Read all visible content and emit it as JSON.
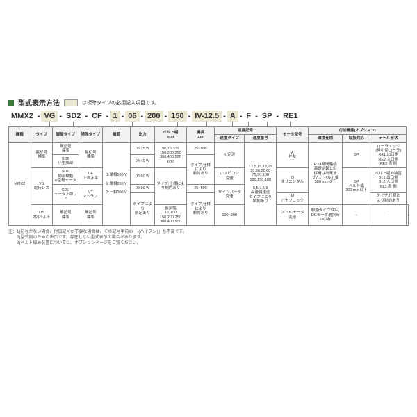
{
  "title": "型式表示方法",
  "legendNote": "は標準タイプの必須記入項目です。",
  "model": {
    "segments": [
      {
        "text": "MMX2",
        "green": false
      },
      {
        "text": "VG",
        "green": true
      },
      {
        "text": "SD2",
        "green": false
      },
      {
        "text": "CF",
        "green": false
      },
      {
        "text": "1",
        "green": true
      },
      {
        "text": "06",
        "green": true
      },
      {
        "text": "200",
        "green": true
      },
      {
        "text": "150",
        "green": true
      },
      {
        "text": "IV-12.5",
        "green": true
      },
      {
        "text": "A",
        "green": true
      },
      {
        "text": "F",
        "green": false
      },
      {
        "text": "SP",
        "green": false
      },
      {
        "text": "RE1",
        "green": false
      }
    ]
  },
  "headers": {
    "row1": [
      "機種",
      "タイプ",
      "脚部タイプ",
      "特殊タイプ",
      "電源",
      "出力",
      "ベルト幅\nmm",
      "機長\ncm",
      "速度記号",
      "",
      "モータ記号",
      "付加機能(オプション)",
      "",
      ""
    ],
    "row2": [
      "",
      "",
      "",
      "",
      "",
      "",
      "",
      "",
      "速度タイプ",
      "速度番号",
      "",
      "環境仕様",
      "取扱対応",
      "テール形状"
    ]
  },
  "body": {
    "r1": {
      "kishu": "MMX2",
      "type1": "無記号\n標準",
      "type1b": "VG\n蛇行レス",
      "type1c": "DB\n2列ベルト",
      "ashi1": "無記号\n標準",
      "ashi2": "SDB\n小型脚部",
      "ashi3": "SDH\n脚部駆動\nφ空転モータ",
      "ashi4": "CDU\nモータ上部フト",
      "ashi5": "無記号\n標準",
      "tokushu1": "無記号\n標準",
      "tokushu2": "CF\n上面水平",
      "tokushu3": "VT\nVトラフ",
      "tokushu4": "無記号\n標準",
      "dengen": "1:単相100 V\n\n2:単相200 V\n\n3:三相200 V",
      "out1": "03:25 W",
      "out2": "04:40 W",
      "out3": "06:60 W",
      "out4": "09:90 W",
      "out5": "タイプにより\n限定あり",
      "belt1": "50,75,100\n150,200,250\n300,400,500\n600",
      "belt2": "タイプ,仕様によ\nり制約あり",
      "belt3": "蓋頂幅\n75,100\n150,200,250\n300,400,500",
      "kicho1": "25~800",
      "kicho2": "タイプ,仕様\nにより\n制約あり",
      "kicho3": "25~600",
      "kicho4": "タイプ,仕様\nにより\n制約あり",
      "kicho5": "100~200",
      "speedType1": "K:定速",
      "speedType2": "U:スピコン\n変速",
      "speedType3": "IV:インバータ\n変速",
      "speedType4": "DC:DCモータ\n変速",
      "speedNum": "12.5,15,18,25\n30,36,50,60\n75,90,100\n120,150,180\n\n5,5:7,5,9\n高速減速比\nタイプにより\n制約あり",
      "motor1": "A\n住友",
      "motor2": "O\nオリエンタル",
      "motor3": "M\nパナソニック",
      "motor4": "駆動タイプSDH,\nDCモータ選択時\nOのみ",
      "env1": "F:24時間連続\n高速逆転との\n併用は出来ま\nせん。ベルト幅\n500 mm以下",
      "env2": "−",
      "tori1": "SP",
      "tori2": "SP\nベルト幅\n300 mm以下",
      "tori3": "−",
      "tail1": "ローラエッジ\n(極小径ローラ)\nRE1:出口側\nRE2:入口側\nRE3:両 側",
      "tail2": "ベルト緩め装置\nBL1:出口側\nBL2:入口側\nBL3:両 側",
      "tail3": "タイプ,仕様に\nより制約あり",
      "tail4": "−"
    }
  },
  "notes": [
    "注：1)記号がない場合、付加記号が不要な場合は、その記号手前の「-(ハイフン)」も不要です。",
    "　　2)型式例のための表示です。存在しない型式表示の場合があります。",
    "　　3)ベルト緩め装置については、オプションページをご覧ください。"
  ]
}
